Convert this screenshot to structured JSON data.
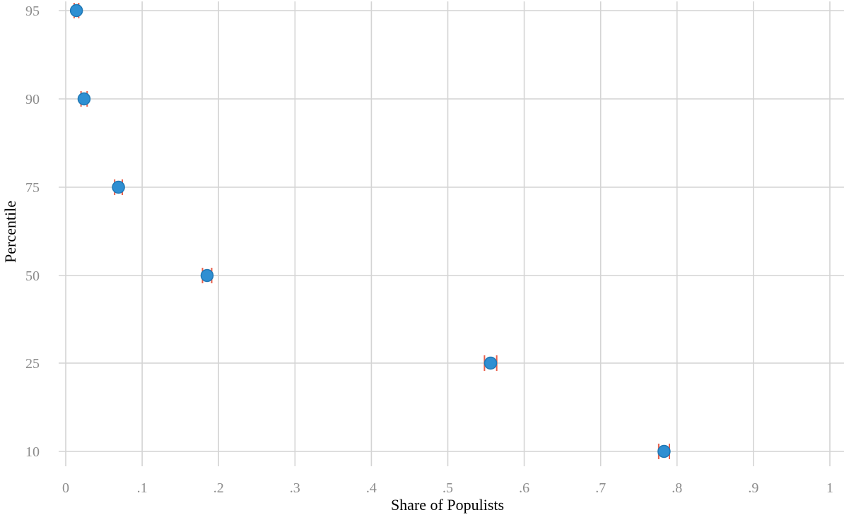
{
  "chart_data": {
    "type": "scatter",
    "xlabel": "Share of Populists",
    "ylabel": "Percentile",
    "xlim": [
      0,
      1
    ],
    "x_ticks": [
      {
        "value": 0,
        "label": "0"
      },
      {
        "value": 0.1,
        "label": ".1"
      },
      {
        "value": 0.2,
        "label": ".2"
      },
      {
        "value": 0.3,
        "label": ".3"
      },
      {
        "value": 0.4,
        "label": ".4"
      },
      {
        "value": 0.5,
        "label": ".5"
      },
      {
        "value": 0.6,
        "label": ".6"
      },
      {
        "value": 0.7,
        "label": ".7"
      },
      {
        "value": 0.8,
        "label": ".8"
      },
      {
        "value": 0.9,
        "label": ".9"
      },
      {
        "value": 1,
        "label": "1"
      }
    ],
    "y_categories": [
      "10",
      "25",
      "50",
      "75",
      "90",
      "95"
    ],
    "grid": true,
    "legend": "none",
    "points": [
      {
        "percentile": "95",
        "x": 0.014,
        "ci": [
          0.011,
          0.017
        ]
      },
      {
        "percentile": "90",
        "x": 0.024,
        "ci": [
          0.02,
          0.028
        ]
      },
      {
        "percentile": "75",
        "x": 0.069,
        "ci": [
          0.064,
          0.074
        ]
      },
      {
        "percentile": "50",
        "x": 0.185,
        "ci": [
          0.179,
          0.191
        ]
      },
      {
        "percentile": "25",
        "x": 0.556,
        "ci": [
          0.548,
          0.564
        ]
      },
      {
        "percentile": "10",
        "x": 0.783,
        "ci": [
          0.776,
          0.79
        ]
      }
    ],
    "colors": {
      "point_fill": "#2f8fd2",
      "point_stroke": "#1f77b4",
      "ci": "#e8604c",
      "grid": "#d4d4d4",
      "tick_text": "#8c8c8c",
      "axis_title": "#000000"
    }
  }
}
